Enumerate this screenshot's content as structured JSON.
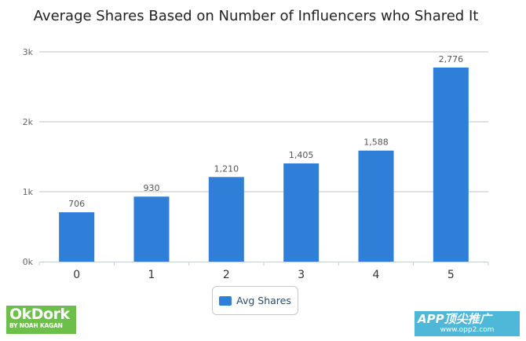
{
  "chart_data": {
    "type": "bar",
    "title": "Average Shares Based on Number of Influencers who Shared It",
    "categories": [
      "0",
      "1",
      "2",
      "3",
      "4",
      "5"
    ],
    "series": [
      {
        "name": "Avg Shares",
        "values": [
          706,
          930,
          1210,
          1405,
          1588,
          2776
        ]
      }
    ],
    "data_labels": [
      "706",
      "930",
      "1,210",
      "1,405",
      "1,588",
      "2,776"
    ],
    "y_ticks": [
      {
        "value": 0,
        "label": "0k"
      },
      {
        "value": 1000,
        "label": "1k"
      },
      {
        "value": 2000,
        "label": "2k"
      },
      {
        "value": 3000,
        "label": "3k"
      }
    ],
    "ylim": [
      0,
      3000
    ],
    "grid": true,
    "legend_position": "bottom",
    "bar_color": "#2f7ed8"
  },
  "legend": {
    "label": "Avg Shares"
  },
  "watermarks": {
    "left_big": "OkDork",
    "left_small": "BY NOAH KAGAN",
    "right_big": "APP顶尖推广",
    "right_small": "www.opp2.com"
  }
}
